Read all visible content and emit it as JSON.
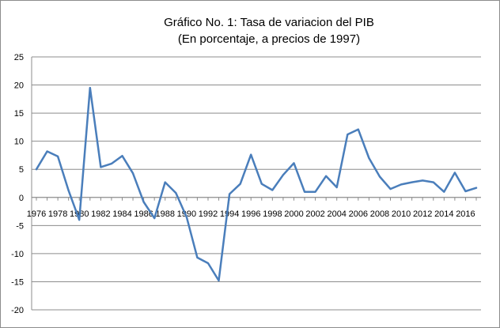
{
  "chart_data": {
    "type": "line",
    "title": "Gráfico No. 1: Tasa de variacion del PIB",
    "subtitle": "(En porcentaje, a precios de 1997)",
    "xlabel": "",
    "ylabel": "",
    "ylim": [
      -20,
      25
    ],
    "yticks": [
      25,
      20,
      15,
      10,
      5,
      0,
      -5,
      -10,
      -15,
      -20
    ],
    "xtick_labels": [
      "1976",
      "1978",
      "1980",
      "1982",
      "1984",
      "1986",
      "1988",
      "1990",
      "1992",
      "1994",
      "1996",
      "1998",
      "2000",
      "2002",
      "2004",
      "2006",
      "2008",
      "2010",
      "2012",
      "2014",
      "2016"
    ],
    "grid": true,
    "line_color": "#4a7ebb",
    "x": [
      1976,
      1977,
      1978,
      1979,
      1980,
      1981,
      1982,
      1983,
      1984,
      1985,
      1986,
      1987,
      1988,
      1989,
      1990,
      1991,
      1992,
      1993,
      1994,
      1995,
      1996,
      1997,
      1998,
      1999,
      2000,
      2001,
      2002,
      2003,
      2004,
      2005,
      2006,
      2007,
      2008,
      2009,
      2010,
      2011,
      2012,
      2013,
      2014,
      2015,
      2016,
      2017
    ],
    "values": [
      5.0,
      8.2,
      7.3,
      1.2,
      -4.0,
      19.5,
      5.4,
      6.0,
      7.4,
      4.3,
      -0.8,
      -3.7,
      2.7,
      0.8,
      -3.5,
      -10.7,
      -11.7,
      -14.8,
      0.6,
      2.4,
      7.6,
      2.4,
      1.3,
      4.0,
      6.1,
      1.0,
      1.0,
      3.8,
      1.8,
      11.2,
      12.1,
      7.0,
      3.7,
      1.5,
      2.3,
      2.7,
      3.0,
      2.7,
      1.0,
      4.4,
      1.1,
      1.7
    ]
  }
}
